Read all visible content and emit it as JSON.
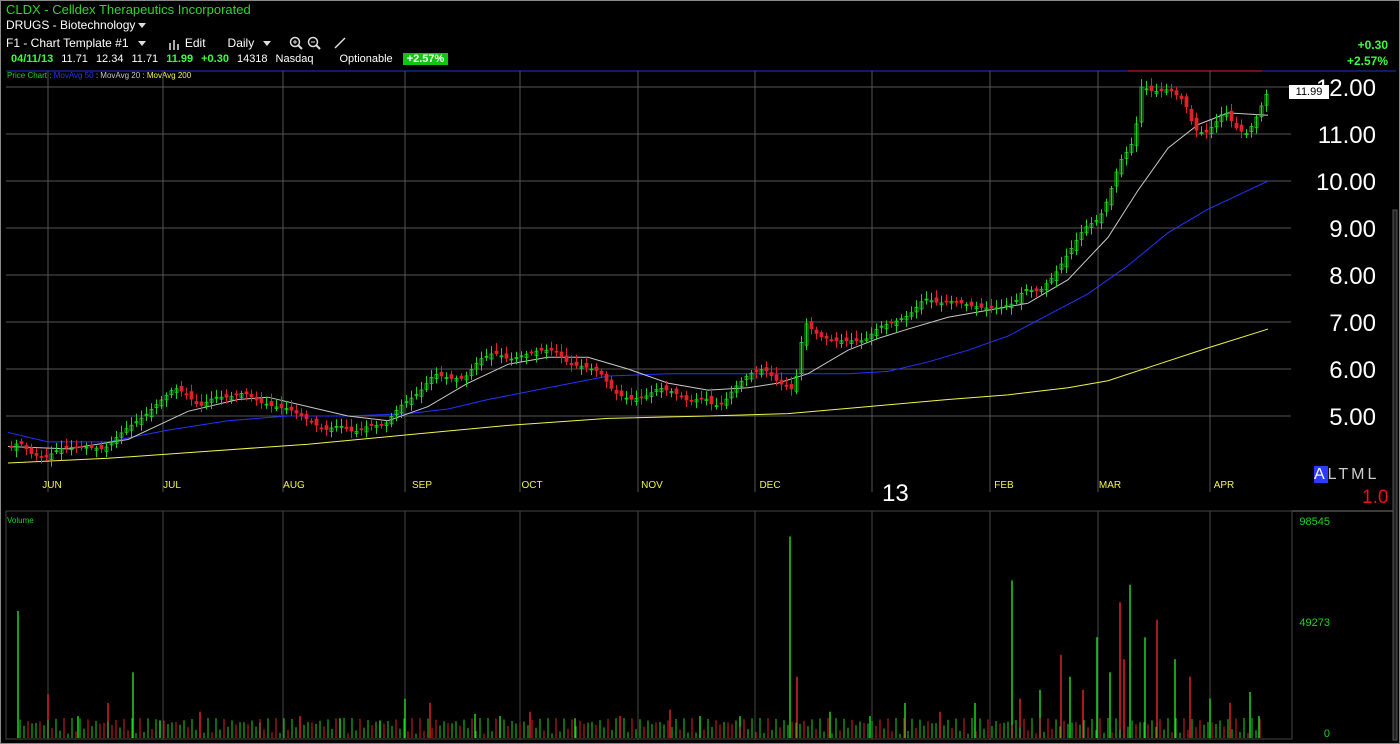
{
  "header": {
    "title": "CLDX - Celldex Therapeutics Incorporated",
    "sector": "DRUGS - Biotechnology",
    "template": "F1 - Chart Template #1",
    "edit_label": "Edit",
    "period_label": "Daily"
  },
  "quote": {
    "date": "04/11/13",
    "open": "11.71",
    "high": "12.34",
    "low": "11.71",
    "close": "11.99",
    "change": "+0.30",
    "volume": "14318",
    "exchange": "Nasdaq",
    "optionable": "Optionable",
    "pct_change": "+2.57%"
  },
  "right_change": {
    "abs": "+0.30",
    "pct": "+2.57%"
  },
  "legend": {
    "price": "Price Chart :",
    "ma50": "MovAvg 50",
    "ma20": "MovAvg 20",
    "ma200": "MovAvg 200",
    "colors": {
      "price": "#1fd41f",
      "ma50": "#2233ff",
      "ma20": "#c8c8c8",
      "ma200": "#f3f34a"
    }
  },
  "volume_label": "Volume",
  "year_label": "13",
  "timeframes": {
    "a": "A",
    "rest": "LTML"
  },
  "version": "1.0",
  "chart_data": {
    "type": "candlestick",
    "ylim": [
      4.0,
      12.3
    ],
    "y_ticks": [
      "5.00",
      "6.00",
      "7.00",
      "8.00",
      "9.00",
      "10.00",
      "11.00",
      "12.00"
    ],
    "x_ticks": [
      "JUN",
      "JUL",
      "AUG",
      "SEP",
      "OCT",
      "NOV",
      "DEC",
      "FEB",
      "MAR",
      "APR"
    ],
    "last_price": "11.99",
    "price_path": [
      [
        0,
        4.3
      ],
      [
        10,
        4.45
      ],
      [
        22,
        4.2
      ],
      [
        35,
        4.1
      ],
      [
        50,
        4.3
      ],
      [
        70,
        4.35
      ],
      [
        95,
        4.3
      ],
      [
        115,
        4.7
      ],
      [
        135,
        5.0
      ],
      [
        150,
        5.3
      ],
      [
        165,
        5.6
      ],
      [
        175,
        5.5
      ],
      [
        190,
        5.2
      ],
      [
        205,
        5.4
      ],
      [
        220,
        5.4
      ],
      [
        235,
        5.5
      ],
      [
        250,
        5.3
      ],
      [
        265,
        5.2
      ],
      [
        280,
        5.15
      ],
      [
        300,
        4.9
      ],
      [
        315,
        4.7
      ],
      [
        330,
        4.8
      ],
      [
        345,
        4.65
      ],
      [
        360,
        4.8
      ],
      [
        375,
        4.8
      ],
      [
        390,
        5.2
      ],
      [
        410,
        5.5
      ],
      [
        425,
        5.9
      ],
      [
        440,
        5.8
      ],
      [
        455,
        5.8
      ],
      [
        470,
        6.2
      ],
      [
        485,
        6.35
      ],
      [
        500,
        6.2
      ],
      [
        515,
        6.3
      ],
      [
        530,
        6.4
      ],
      [
        545,
        6.4
      ],
      [
        560,
        6.1
      ],
      [
        575,
        6.05
      ],
      [
        590,
        5.95
      ],
      [
        605,
        5.5
      ],
      [
        620,
        5.35
      ],
      [
        635,
        5.4
      ],
      [
        650,
        5.6
      ],
      [
        665,
        5.5
      ],
      [
        680,
        5.3
      ],
      [
        695,
        5.4
      ],
      [
        705,
        5.2
      ],
      [
        715,
        5.3
      ],
      [
        725,
        5.6
      ],
      [
        740,
        5.9
      ],
      [
        755,
        6.0
      ],
      [
        770,
        5.7
      ],
      [
        785,
        5.55
      ],
      [
        795,
        7.0
      ],
      [
        810,
        6.7
      ],
      [
        825,
        6.6
      ],
      [
        840,
        6.6
      ],
      [
        855,
        6.6
      ],
      [
        870,
        6.9
      ],
      [
        885,
        7.0
      ],
      [
        900,
        7.15
      ],
      [
        915,
        7.5
      ],
      [
        930,
        7.4
      ],
      [
        945,
        7.45
      ],
      [
        960,
        7.35
      ],
      [
        975,
        7.3
      ],
      [
        990,
        7.3
      ],
      [
        1005,
        7.4
      ],
      [
        1015,
        7.7
      ],
      [
        1030,
        7.65
      ],
      [
        1045,
        8.0
      ],
      [
        1060,
        8.5
      ],
      [
        1075,
        9.0
      ],
      [
        1090,
        9.2
      ],
      [
        1100,
        9.7
      ],
      [
        1110,
        10.4
      ],
      [
        1120,
        10.7
      ],
      [
        1125,
        10.9
      ],
      [
        1132,
        12.0
      ],
      [
        1145,
        11.9
      ],
      [
        1160,
        11.95
      ],
      [
        1175,
        11.7
      ],
      [
        1185,
        11.1
      ],
      [
        1195,
        11.0
      ],
      [
        1205,
        11.2
      ],
      [
        1215,
        11.5
      ],
      [
        1228,
        11.1
      ],
      [
        1238,
        11.0
      ],
      [
        1248,
        11.4
      ],
      [
        1260,
        11.99
      ]
    ],
    "ma20": [
      [
        0,
        4.35
      ],
      [
        60,
        4.3
      ],
      [
        120,
        4.5
      ],
      [
        180,
        5.1
      ],
      [
        230,
        5.35
      ],
      [
        260,
        5.4
      ],
      [
        300,
        5.2
      ],
      [
        340,
        5.0
      ],
      [
        380,
        4.9
      ],
      [
        420,
        5.2
      ],
      [
        460,
        5.7
      ],
      [
        500,
        6.1
      ],
      [
        540,
        6.25
      ],
      [
        580,
        6.25
      ],
      [
        620,
        6.0
      ],
      [
        660,
        5.7
      ],
      [
        700,
        5.55
      ],
      [
        740,
        5.6
      ],
      [
        770,
        5.7
      ],
      [
        800,
        5.9
      ],
      [
        840,
        6.4
      ],
      [
        870,
        6.65
      ],
      [
        900,
        6.85
      ],
      [
        940,
        7.1
      ],
      [
        980,
        7.25
      ],
      [
        1020,
        7.4
      ],
      [
        1060,
        7.9
      ],
      [
        1100,
        8.8
      ],
      [
        1130,
        9.8
      ],
      [
        1160,
        10.7
      ],
      [
        1190,
        11.2
      ],
      [
        1220,
        11.45
      ],
      [
        1260,
        11.4
      ]
    ],
    "ma50": [
      [
        0,
        4.65
      ],
      [
        40,
        4.45
      ],
      [
        100,
        4.45
      ],
      [
        160,
        4.7
      ],
      [
        220,
        4.9
      ],
      [
        280,
        5.0
      ],
      [
        340,
        5.0
      ],
      [
        400,
        5.05
      ],
      [
        440,
        5.15
      ],
      [
        480,
        5.35
      ],
      [
        540,
        5.6
      ],
      [
        600,
        5.85
      ],
      [
        660,
        5.9
      ],
      [
        700,
        5.9
      ],
      [
        760,
        5.9
      ],
      [
        800,
        5.9
      ],
      [
        840,
        5.9
      ],
      [
        880,
        5.95
      ],
      [
        920,
        6.15
      ],
      [
        960,
        6.4
      ],
      [
        1000,
        6.7
      ],
      [
        1040,
        7.15
      ],
      [
        1080,
        7.6
      ],
      [
        1120,
        8.2
      ],
      [
        1160,
        8.9
      ],
      [
        1200,
        9.4
      ],
      [
        1240,
        9.8
      ],
      [
        1260,
        10.0
      ]
    ],
    "ma200": [
      [
        0,
        4.0
      ],
      [
        100,
        4.1
      ],
      [
        200,
        4.25
      ],
      [
        300,
        4.4
      ],
      [
        400,
        4.6
      ],
      [
        500,
        4.8
      ],
      [
        600,
        4.95
      ],
      [
        700,
        5.0
      ],
      [
        780,
        5.05
      ],
      [
        860,
        5.2
      ],
      [
        940,
        5.35
      ],
      [
        1000,
        5.45
      ],
      [
        1060,
        5.6
      ],
      [
        1100,
        5.75
      ],
      [
        1150,
        6.1
      ],
      [
        1200,
        6.45
      ],
      [
        1260,
        6.85
      ]
    ],
    "volume": {
      "ylim": [
        0,
        98545
      ],
      "y_ticks": [
        "98545",
        "49273",
        "0"
      ],
      "bars": [
        [
          18,
          0.58,
          "g"
        ],
        [
          48,
          0.2,
          "r"
        ],
        [
          78,
          0.1,
          "g"
        ],
        [
          108,
          0.16,
          "r"
        ],
        [
          133,
          0.3,
          "g"
        ],
        [
          160,
          0.08,
          "g"
        ],
        [
          200,
          0.12,
          "r"
        ],
        [
          260,
          0.07,
          "g"
        ],
        [
          300,
          0.1,
          "r"
        ],
        [
          340,
          0.09,
          "g"
        ],
        [
          380,
          0.08,
          "g"
        ],
        [
          405,
          0.18,
          "g"
        ],
        [
          430,
          0.16,
          "r"
        ],
        [
          475,
          0.11,
          "g"
        ],
        [
          500,
          0.1,
          "g"
        ],
        [
          530,
          0.12,
          "r"
        ],
        [
          575,
          0.09,
          "g"
        ],
        [
          620,
          0.1,
          "r"
        ],
        [
          670,
          0.13,
          "r"
        ],
        [
          700,
          0.1,
          "g"
        ],
        [
          740,
          0.1,
          "g"
        ],
        [
          790,
          0.92,
          "g"
        ],
        [
          797,
          0.28,
          "r"
        ],
        [
          830,
          0.12,
          "g"
        ],
        [
          870,
          0.1,
          "g"
        ],
        [
          905,
          0.16,
          "g"
        ],
        [
          940,
          0.12,
          "r"
        ],
        [
          975,
          0.16,
          "g"
        ],
        [
          1012,
          0.72,
          "g"
        ],
        [
          1020,
          0.18,
          "r"
        ],
        [
          1040,
          0.22,
          "g"
        ],
        [
          1061,
          0.38,
          "r"
        ],
        [
          1070,
          0.28,
          "g"
        ],
        [
          1083,
          0.22,
          "r"
        ],
        [
          1097,
          0.46,
          "g"
        ],
        [
          1110,
          0.3,
          "g"
        ],
        [
          1120,
          0.62,
          "r"
        ],
        [
          1124,
          0.36,
          "r"
        ],
        [
          1130,
          0.7,
          "g"
        ],
        [
          1145,
          0.46,
          "g"
        ],
        [
          1157,
          0.54,
          "r"
        ],
        [
          1175,
          0.36,
          "g"
        ],
        [
          1190,
          0.28,
          "r"
        ],
        [
          1210,
          0.18,
          "g"
        ],
        [
          1230,
          0.16,
          "r"
        ],
        [
          1250,
          0.21,
          "g"
        ],
        [
          1259,
          0.1,
          "g"
        ]
      ]
    }
  }
}
